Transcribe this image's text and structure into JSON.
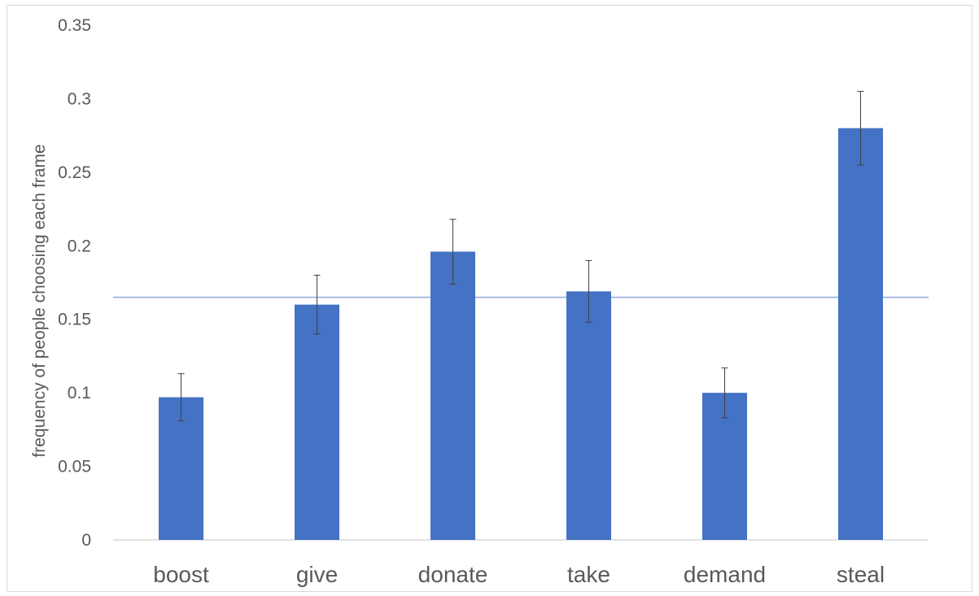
{
  "chart_data": {
    "type": "bar",
    "categories": [
      "boost",
      "give",
      "donate",
      "take",
      "demand",
      "steal"
    ],
    "series": [
      {
        "values": [
          0.097,
          0.16,
          0.196,
          0.169,
          0.1,
          0.28
        ],
        "error": [
          0.016,
          0.02,
          0.022,
          0.021,
          0.017,
          0.025
        ]
      }
    ],
    "reference_line": 0.165,
    "title": "",
    "xlabel": "",
    "ylabel": "frequency of people choosing each  frame",
    "ylim": [
      0,
      0.35
    ],
    "yticks": [
      "0",
      "0.05",
      "0.1",
      "0.15",
      "0.2",
      "0.25",
      "0.3",
      "0.35"
    ],
    "grid": false,
    "legend": "none"
  },
  "colors": {
    "bar": "#4472c4",
    "reference_line": "#8eaadb",
    "error_bar": "#404040",
    "axis": "#d9d9d9",
    "text": "#595959"
  }
}
